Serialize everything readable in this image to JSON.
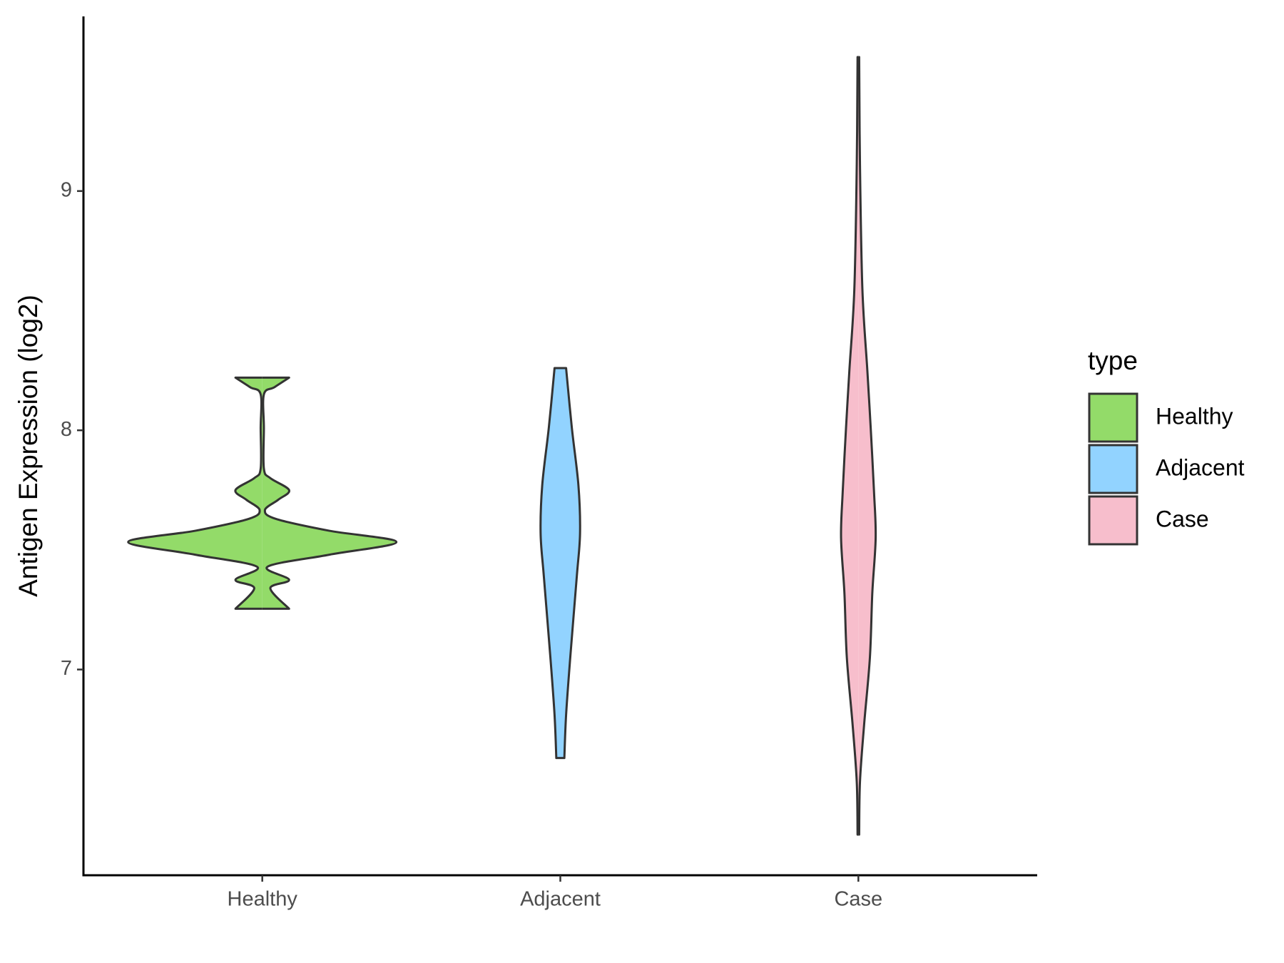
{
  "chart_data": {
    "type": "violin",
    "y_label": "Antigen Expression (log2)",
    "categories": [
      "Healthy",
      "Adjacent",
      "Case"
    ],
    "series": [
      {
        "name": "Healthy",
        "color": "#93db69",
        "y": [
          7.254,
          7.34,
          7.375,
          7.43,
          7.48,
          7.533,
          7.58,
          7.63,
          7.667,
          7.71,
          7.75,
          7.8,
          7.84,
          8.01,
          8.15,
          8.18,
          8.22
        ],
        "density": [
          0.2,
          0.06,
          0.2,
          0.04,
          0.5,
          1.0,
          0.5,
          0.1,
          0.02,
          0.12,
          0.2,
          0.06,
          0.012,
          0.012,
          0.012,
          0.09,
          0.2
        ]
      },
      {
        "name": "Adjacent",
        "color": "#92d3ff",
        "y": [
          6.63,
          6.81,
          7.05,
          7.39,
          7.57,
          7.77,
          8.01,
          8.26
        ],
        "density": [
          0.03,
          0.043,
          0.074,
          0.123,
          0.147,
          0.135,
          0.086,
          0.043
        ]
      },
      {
        "name": "Case",
        "color": "#f7becc",
        "y": [
          6.31,
          6.53,
          6.77,
          7.05,
          7.32,
          7.55,
          7.74,
          8.01,
          8.25,
          8.59,
          9.11,
          9.56
        ],
        "density": [
          0.006,
          0.012,
          0.043,
          0.086,
          0.104,
          0.129,
          0.117,
          0.092,
          0.067,
          0.03,
          0.012,
          0.006
        ]
      }
    ],
    "ylim": [
      6.14,
      9.73
    ],
    "yticks": [
      7,
      8,
      9
    ],
    "legend_title": "type",
    "legend": "right",
    "grid": false
  }
}
